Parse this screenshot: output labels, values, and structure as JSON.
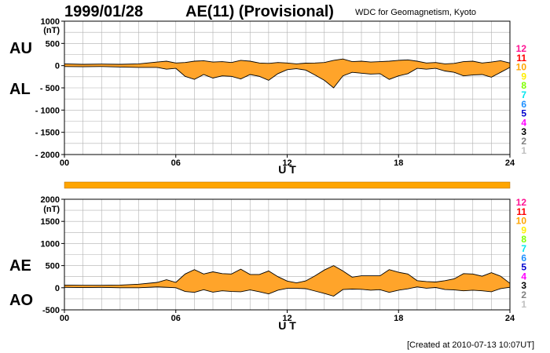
{
  "header": {
    "date": "1999/01/28",
    "index_title": "AE(11) (Provisional)",
    "source": "WDC for Geomagnetism, Kyoto"
  },
  "side_labels": {
    "au": "AU",
    "al": "AL",
    "ae": "AE",
    "ao": "AO"
  },
  "footer": "[Created at 2010-07-13 10:07UT]",
  "legend": {
    "stations": [
      {
        "label": "12",
        "color": "#ff1493"
      },
      {
        "label": "11",
        "color": "#ff0000"
      },
      {
        "label": "10",
        "color": "#ffa500"
      },
      {
        "label": "9",
        "color": "#ffee00"
      },
      {
        "label": "8",
        "color": "#7fff00"
      },
      {
        "label": "7",
        "color": "#00e5ee"
      },
      {
        "label": "6",
        "color": "#1e90ff"
      },
      {
        "label": "5",
        "color": "#0000cd"
      },
      {
        "label": "4",
        "color": "#ff00ff"
      },
      {
        "label": "3",
        "color": "#000000"
      },
      {
        "label": "2",
        "color": "#808080"
      },
      {
        "label": "1",
        "color": "#c0c0c0"
      }
    ]
  },
  "colors": {
    "fill": "#ffa42a",
    "line": "#000000",
    "grid": "#b0b0b0",
    "bar": "#ffa500"
  },
  "chart_data": [
    {
      "type": "area",
      "name": "AU/AL",
      "xlabel": "U T",
      "ylabel": "(nT)",
      "xlim": [
        0,
        24
      ],
      "ylim": [
        -2000,
        1000
      ],
      "xticks": [
        "00",
        "06",
        "12",
        "18",
        "24"
      ],
      "ytick_labels": [
        "1000",
        "500",
        "0",
        "- 500",
        "- 1000",
        "- 1500",
        "- 2000"
      ],
      "ytick_values": [
        1000,
        500,
        0,
        -500,
        -1000,
        -1500,
        -2000
      ],
      "x": [
        0,
        1,
        2,
        3,
        4,
        5,
        5.5,
        6,
        6.5,
        7,
        7.5,
        8,
        8.5,
        9,
        9.5,
        10,
        10.5,
        11,
        11.5,
        12,
        12.5,
        13,
        13.5,
        14,
        14.5,
        15,
        15.5,
        16,
        16.5,
        17,
        17.5,
        18,
        18.5,
        19,
        19.5,
        20,
        20.5,
        21,
        21.5,
        22,
        22.5,
        23,
        23.5,
        24
      ],
      "series": [
        {
          "name": "AU",
          "values": [
            40,
            30,
            35,
            30,
            40,
            80,
            100,
            60,
            70,
            100,
            110,
            80,
            90,
            70,
            120,
            100,
            60,
            50,
            70,
            60,
            40,
            55,
            60,
            70,
            120,
            150,
            90,
            100,
            80,
            90,
            100,
            120,
            130,
            100,
            60,
            70,
            40,
            50,
            90,
            100,
            60,
            80,
            110,
            60
          ]
        },
        {
          "name": "AL",
          "values": [
            -20,
            -25,
            -20,
            -30,
            -40,
            -40,
            -80,
            -60,
            -240,
            -310,
            -200,
            -280,
            -230,
            -240,
            -300,
            -200,
            -240,
            -330,
            -180,
            -90,
            -70,
            -100,
            -210,
            -330,
            -500,
            -230,
            -150,
            -170,
            -190,
            -180,
            -310,
            -230,
            -180,
            -60,
            -80,
            -60,
            -120,
            -150,
            -230,
            -210,
            -200,
            -260,
            -150,
            -40
          ]
        }
      ]
    },
    {
      "type": "area",
      "name": "AE/AO",
      "xlabel": "U T",
      "ylabel": "(nT)",
      "xlim": [
        0,
        24
      ],
      "ylim": [
        -500,
        2000
      ],
      "xticks": [
        "00",
        "06",
        "12",
        "18",
        "24"
      ],
      "ytick_labels": [
        "2000",
        "1500",
        "1000",
        "500",
        "0",
        "-500"
      ],
      "ytick_values": [
        2000,
        1500,
        1000,
        500,
        0,
        -500
      ],
      "x": [
        0,
        1,
        2,
        3,
        4,
        5,
        5.5,
        6,
        6.5,
        7,
        7.5,
        8,
        8.5,
        9,
        9.5,
        10,
        10.5,
        11,
        11.5,
        12,
        12.5,
        13,
        13.5,
        14,
        14.5,
        15,
        15.5,
        16,
        16.5,
        17,
        17.5,
        18,
        18.5,
        19,
        19.5,
        20,
        20.5,
        21,
        21.5,
        22,
        22.5,
        23,
        23.5,
        24
      ],
      "series": [
        {
          "name": "AE",
          "values": [
            60,
            55,
            55,
            60,
            80,
            120,
            180,
            120,
            310,
            410,
            310,
            360,
            320,
            310,
            420,
            300,
            300,
            380,
            250,
            150,
            110,
            155,
            270,
            400,
            500,
            380,
            240,
            270,
            270,
            270,
            410,
            350,
            310,
            160,
            140,
            130,
            160,
            200,
            320,
            310,
            260,
            340,
            260,
            100
          ]
        },
        {
          "name": "AO",
          "values": [
            10,
            3,
            8,
            0,
            0,
            20,
            10,
            0,
            -85,
            -105,
            -45,
            -100,
            -70,
            -85,
            -90,
            -50,
            -90,
            -140,
            -55,
            -15,
            -15,
            -22,
            -75,
            -130,
            -190,
            -40,
            -30,
            -35,
            -55,
            -45,
            -105,
            -55,
            -25,
            20,
            -10,
            5,
            -40,
            -50,
            -70,
            -55,
            -70,
            -90,
            -20,
            10
          ]
        }
      ]
    }
  ]
}
